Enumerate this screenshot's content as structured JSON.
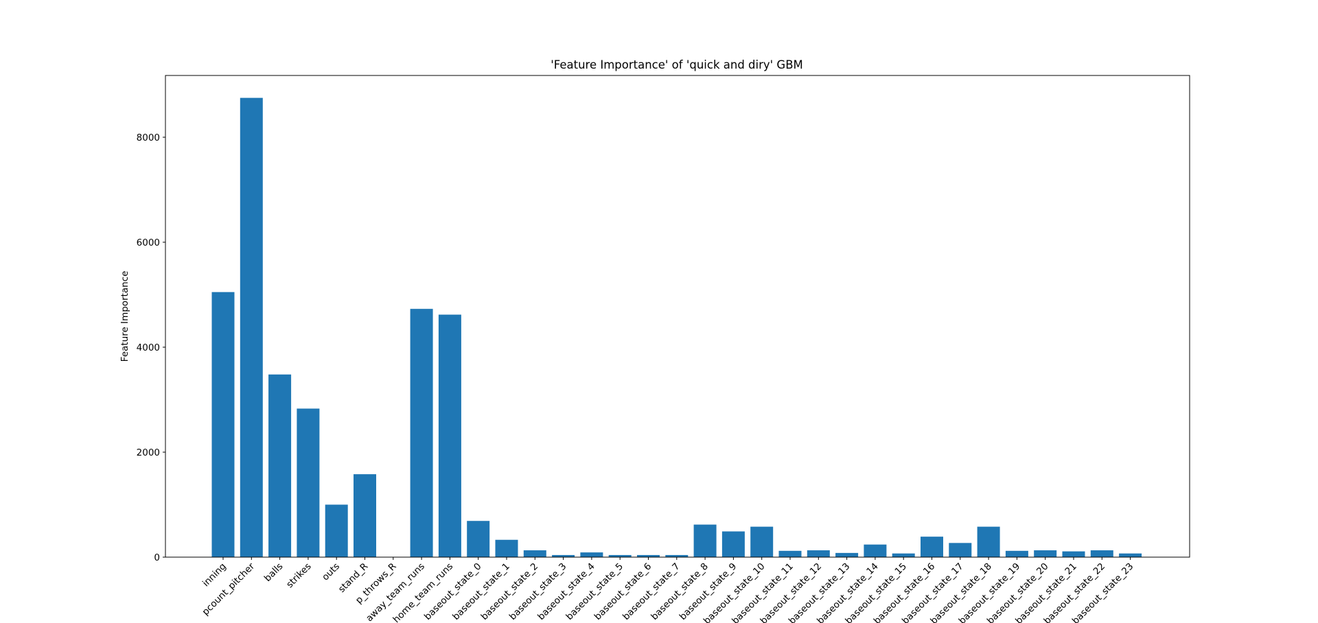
{
  "chart_data": {
    "type": "bar",
    "title": "'Feature Importance' of 'quick and diry' GBM",
    "xlabel": "",
    "ylabel": "Feature Importance",
    "ylim": [
      0,
      9200
    ],
    "yticks": [
      0,
      2000,
      4000,
      6000,
      8000
    ],
    "grid": false,
    "color": "#1f77b4",
    "categories": [
      "inning",
      "pcount_pitcher",
      "balls",
      "strikes",
      "outs",
      "stand_R",
      "p_throws_R",
      "away_team_runs",
      "home_team_runs",
      "baseout_state_0",
      "baseout_state_1",
      "baseout_state_2",
      "baseout_state_3",
      "baseout_state_4",
      "baseout_state_5",
      "baseout_state_6",
      "baseout_state_7",
      "baseout_state_8",
      "baseout_state_9",
      "baseout_state_10",
      "baseout_state_11",
      "baseout_state_12",
      "baseout_state_13",
      "baseout_state_14",
      "baseout_state_15",
      "baseout_state_16",
      "baseout_state_17",
      "baseout_state_18",
      "baseout_state_19",
      "baseout_state_20",
      "baseout_state_21",
      "baseout_state_22",
      "baseout_state_23"
    ],
    "values": [
      5050,
      8750,
      3480,
      2830,
      1000,
      1580,
      0,
      4730,
      4620,
      690,
      330,
      130,
      40,
      90,
      40,
      40,
      40,
      620,
      490,
      580,
      120,
      130,
      80,
      240,
      70,
      390,
      270,
      580,
      120,
      130,
      110,
      130,
      70
    ]
  }
}
